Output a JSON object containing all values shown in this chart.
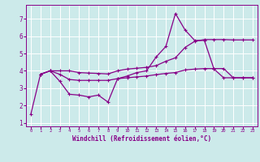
{
  "xlabel": "Windchill (Refroidissement éolien,°C)",
  "bg_color": "#cceaea",
  "grid_color": "#ffffff",
  "line_color": "#880088",
  "xlim": [
    -0.5,
    23.5
  ],
  "ylim": [
    0.8,
    7.8
  ],
  "xticks": [
    0,
    1,
    2,
    3,
    4,
    5,
    6,
    7,
    8,
    9,
    10,
    11,
    12,
    13,
    14,
    15,
    16,
    17,
    18,
    19,
    20,
    21,
    22,
    23
  ],
  "yticks": [
    1,
    2,
    3,
    4,
    5,
    6,
    7
  ],
  "line1_x": [
    0,
    1,
    2,
    3,
    4,
    5,
    6,
    7,
    8,
    9,
    10,
    11,
    12,
    13,
    14,
    15,
    16,
    17,
    18,
    19,
    20,
    21,
    22,
    23
  ],
  "line1_y": [
    1.5,
    3.8,
    4.0,
    3.4,
    2.65,
    2.6,
    2.5,
    2.6,
    2.2,
    3.55,
    3.7,
    3.9,
    4.0,
    4.8,
    5.4,
    7.3,
    6.35,
    5.75,
    5.75,
    4.1,
    3.6,
    3.6,
    3.6,
    3.6
  ],
  "line2_x": [
    1,
    2,
    3,
    4,
    5,
    6,
    7,
    8,
    9,
    10,
    11,
    12,
    13,
    14,
    15,
    16,
    17,
    18,
    19,
    20,
    21,
    22,
    23
  ],
  "line2_y": [
    3.8,
    4.0,
    4.0,
    4.0,
    3.9,
    3.87,
    3.85,
    3.82,
    4.0,
    4.1,
    4.15,
    4.2,
    4.3,
    4.55,
    4.75,
    5.35,
    5.7,
    5.8,
    5.8,
    5.8,
    5.78,
    5.78,
    5.78
  ],
  "line3_x": [
    1,
    2,
    3,
    4,
    5,
    6,
    7,
    8,
    9,
    10,
    11,
    12,
    13,
    14,
    15,
    16,
    17,
    18,
    19,
    20,
    21,
    22,
    23
  ],
  "line3_y": [
    3.8,
    4.0,
    3.8,
    3.5,
    3.45,
    3.45,
    3.45,
    3.45,
    3.55,
    3.6,
    3.65,
    3.7,
    3.78,
    3.85,
    3.9,
    4.05,
    4.1,
    4.13,
    4.13,
    4.13,
    3.6,
    3.6,
    3.6
  ]
}
